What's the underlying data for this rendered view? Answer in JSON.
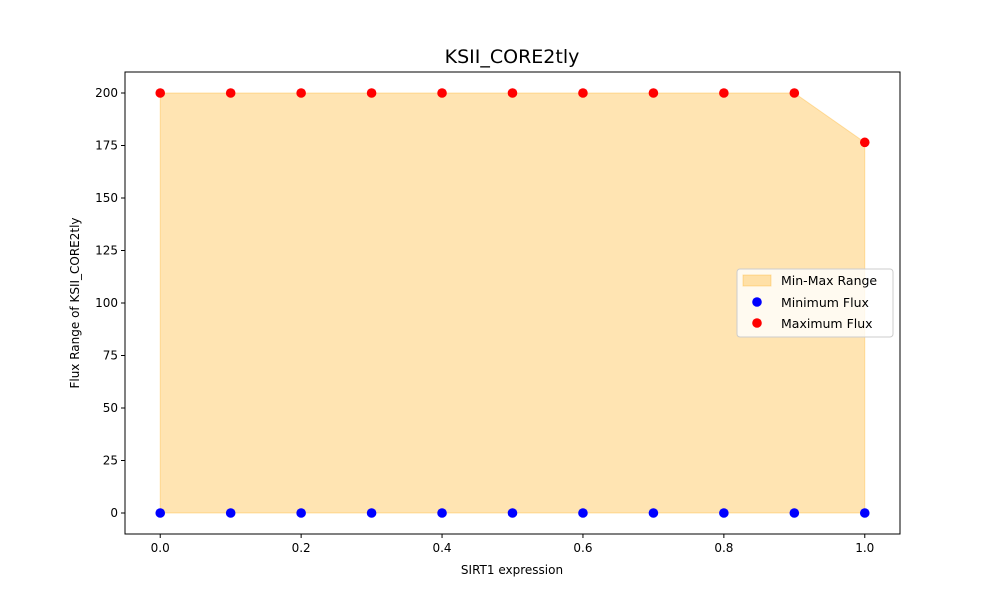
{
  "chart_data": {
    "type": "scatter",
    "title": "KSII_CORE2tly",
    "xlabel": "SIRT1 expression",
    "ylabel": "Flux Range of KSII_CORE2tly",
    "xlim": [
      -0.05,
      1.05
    ],
    "ylim": [
      -10,
      210
    ],
    "x_ticks": [
      0.0,
      0.2,
      0.4,
      0.6,
      0.8,
      1.0
    ],
    "x_tick_labels": [
      "0.0",
      "0.2",
      "0.4",
      "0.6",
      "0.8",
      "1.0"
    ],
    "y_ticks": [
      0,
      25,
      50,
      75,
      100,
      125,
      150,
      175,
      200
    ],
    "y_tick_labels": [
      "0",
      "25",
      "50",
      "75",
      "100",
      "125",
      "150",
      "175",
      "200"
    ],
    "x": [
      0.0,
      0.1,
      0.2,
      0.3,
      0.4,
      0.5,
      0.6,
      0.7,
      0.8,
      0.9,
      1.0
    ],
    "series": [
      {
        "name": "Minimum Flux",
        "color": "#0000ff",
        "values": [
          0,
          0,
          0,
          0,
          0,
          0,
          0,
          0,
          0,
          0,
          0
        ]
      },
      {
        "name": "Maximum Flux",
        "color": "#ff0000",
        "values": [
          200,
          200,
          200,
          200,
          200,
          200,
          200,
          200,
          200,
          200,
          176.5
        ]
      }
    ],
    "fill": {
      "name": "Min-Max Range",
      "color": "#ffa500",
      "opacity": 0.3
    },
    "legend": {
      "location": "center-right",
      "entries": [
        "Min-Max Range",
        "Minimum Flux",
        "Maximum Flux"
      ]
    },
    "grid": false
  }
}
